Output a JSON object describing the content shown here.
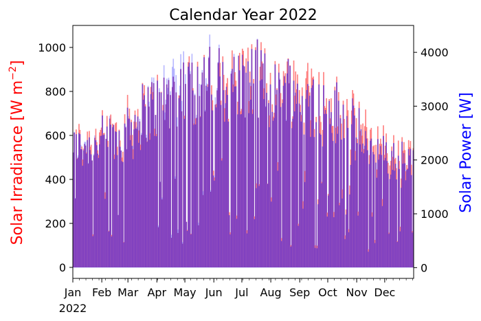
{
  "chart_data": {
    "type": "bar",
    "title": "Calendar Year 2022",
    "ylabel_left": "Solar Irradiance [W m",
    "ylabel_left_unit_exp": "−2",
    "ylabel_left_close": "]",
    "ylabel_right": "Solar Power [W]",
    "x_tick_labels": [
      "Jan",
      "Feb",
      "Mar",
      "Apr",
      "May",
      "Jun",
      "Jul",
      "Aug",
      "Sep",
      "Oct",
      "Nov",
      "Dec"
    ],
    "x_year_label": "2022",
    "ylim_left": [
      -50,
      1100
    ],
    "ylim_right": [
      -200,
      4500
    ],
    "yticks_left": [
      0,
      200,
      400,
      600,
      800,
      1000
    ],
    "yticks_right": [
      0,
      1000,
      2000,
      3000,
      4000
    ],
    "colors": {
      "irradiance": "#ff7f7f",
      "power": "#7f7fff",
      "overlap": "#8040c0"
    },
    "series": [
      {
        "name": "Solar Irradiance",
        "axis": "left",
        "months": [
          "Jan",
          "Feb",
          "Mar",
          "Apr",
          "May",
          "Jun",
          "Jul",
          "Aug",
          "Sep",
          "Oct",
          "Nov",
          "Dec"
        ],
        "monthly_peak_values": [
          690,
          740,
          860,
          960,
          1010,
          1030,
          1040,
          1010,
          950,
          860,
          700,
          600
        ]
      },
      {
        "name": "Solar Power",
        "axis": "right",
        "months": [
          "Jan",
          "Feb",
          "Mar",
          "Apr",
          "May",
          "Jun",
          "Jul",
          "Aug",
          "Sep",
          "Oct",
          "Nov",
          "Dec"
        ],
        "monthly_peak_values": [
          2900,
          3000,
          3550,
          4300,
          4350,
          4250,
          4200,
          4100,
          3800,
          3400,
          2700,
          2400
        ]
      }
    ]
  }
}
